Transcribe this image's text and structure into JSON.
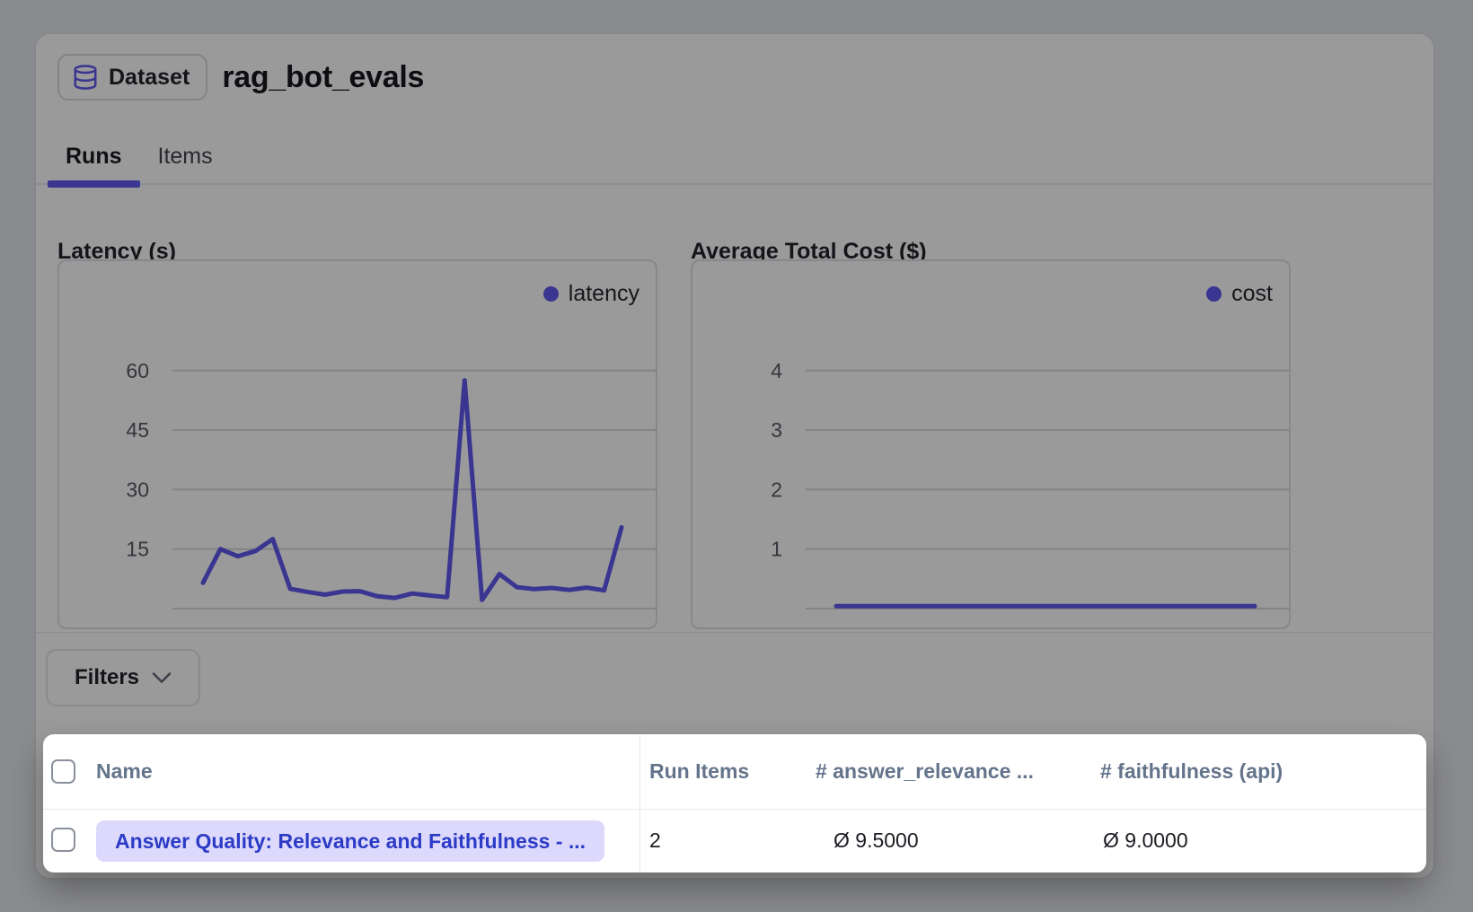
{
  "colors": {
    "accent": "#5b54ec",
    "pill_bg": "#dcd9fc",
    "pill_text": "#2c3bc6",
    "header_text": "#64748b",
    "gridline": "#d7d8db",
    "tick_label": "#55565f"
  },
  "header": {
    "badge_label": "Dataset",
    "badge_icon": "database-icon",
    "title": "rag_bot_evals"
  },
  "tabs": [
    {
      "label": "Runs",
      "active": true
    },
    {
      "label": "Items",
      "active": false
    }
  ],
  "filters_label": "Filters",
  "chart_data": [
    {
      "type": "line",
      "title": "Latency (s)",
      "legend": [
        "latency"
      ],
      "legend_position": "top-right",
      "xlabel": "",
      "ylabel": "",
      "ylim": [
        0,
        65
      ],
      "yticks": [
        15,
        30,
        45,
        60
      ],
      "grid": true,
      "x_tick_labels_visible": false,
      "series": [
        {
          "name": "latency",
          "values": [
            6.5,
            15,
            13.2,
            14.5,
            17.5,
            5,
            4.2,
            3.5,
            4.3,
            4.4,
            3.1,
            2.7,
            3.8,
            3.3,
            2.9,
            57.5,
            2.2,
            8.7,
            5.4,
            4.9,
            5.2,
            4.7,
            5.3,
            4.6,
            20.5
          ]
        }
      ]
    },
    {
      "type": "line",
      "title": "Average Total Cost ($)",
      "legend": [
        "cost"
      ],
      "legend_position": "top-right",
      "xlabel": "",
      "ylabel": "",
      "ylim": [
        0,
        4.3
      ],
      "yticks": [
        1,
        2,
        3,
        4
      ],
      "grid": true,
      "x_tick_labels_visible": false,
      "series": [
        {
          "name": "cost",
          "values": [
            0.04,
            0.04,
            0.04,
            0.04,
            0.04,
            0.04,
            0.04,
            0.04,
            0.04,
            0.04,
            0.04,
            0.04,
            0.04,
            0.04,
            0.04,
            0.04,
            0.04,
            0.04,
            0.04,
            0.04,
            0.04,
            0.04,
            0.04,
            0.04,
            0.04
          ]
        }
      ]
    }
  ],
  "table": {
    "columns": [
      "Name",
      "Run Items",
      "# answer_relevance ...",
      "# faithfulness (api)"
    ],
    "rows": [
      {
        "name": "Answer Quality: Relevance and Faithfulness - ...",
        "run_items": "2",
        "answer_relevance": "Ø 9.5000",
        "faithfulness": "Ø 9.0000"
      }
    ]
  }
}
